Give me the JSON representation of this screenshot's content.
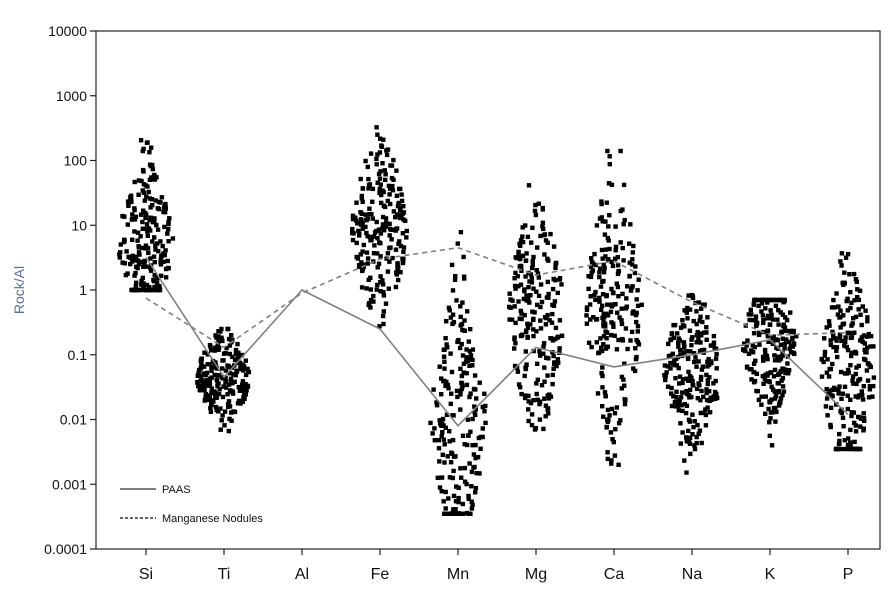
{
  "chart_data": {
    "type": "scatter",
    "ylabel": "Rock/Al",
    "yscale": "log",
    "ylim": [
      0.0001,
      10000
    ],
    "y_ticks": [
      "10000",
      "1000",
      "100",
      "10",
      "1",
      "0.1",
      "0.01",
      "0.001",
      "0.0001"
    ],
    "categories": [
      "Si",
      "Ti",
      "Al",
      "Fe",
      "Mn",
      "Mg",
      "Ca",
      "Na",
      "K",
      "P"
    ],
    "series": [
      {
        "name": "PAAS",
        "style": "solid",
        "color": "#808080",
        "values": [
          3.2,
          0.045,
          1.0,
          0.25,
          0.008,
          0.13,
          0.065,
          0.1,
          0.17,
          0.012
        ]
      },
      {
        "name": "Manganese Nodules",
        "style": "dashed",
        "color": "#808080",
        "values": [
          0.75,
          0.13,
          0.9,
          3.0,
          4.5,
          1.7,
          2.8,
          0.65,
          0.2,
          0.22
        ]
      }
    ],
    "point_clouds": [
      {
        "category": "Si",
        "min": 1.0,
        "max": 320,
        "center": 5.5
      },
      {
        "category": "Ti",
        "min": 0.006,
        "max": 0.25,
        "center": 0.045
      },
      {
        "category": "Fe",
        "min": 0.15,
        "max": 450,
        "center": 8
      },
      {
        "category": "Mn",
        "min": 0.00035,
        "max": 8,
        "center": 0.01
      },
      {
        "category": "Mg",
        "min": 0.007,
        "max": 110,
        "center": 0.4
      },
      {
        "category": "Ca",
        "min": 0.002,
        "max": 140,
        "center": 0.5
      },
      {
        "category": "Na",
        "min": 0.0012,
        "max": 1.5,
        "center": 0.05
      },
      {
        "category": "K",
        "min": 0.004,
        "max": 0.7,
        "center": 0.15
      },
      {
        "category": "P",
        "min": 0.0035,
        "max": 10,
        "center": 0.06
      }
    ],
    "marker_color": "#000000",
    "legend_position": "bottom-left",
    "grid": false
  }
}
